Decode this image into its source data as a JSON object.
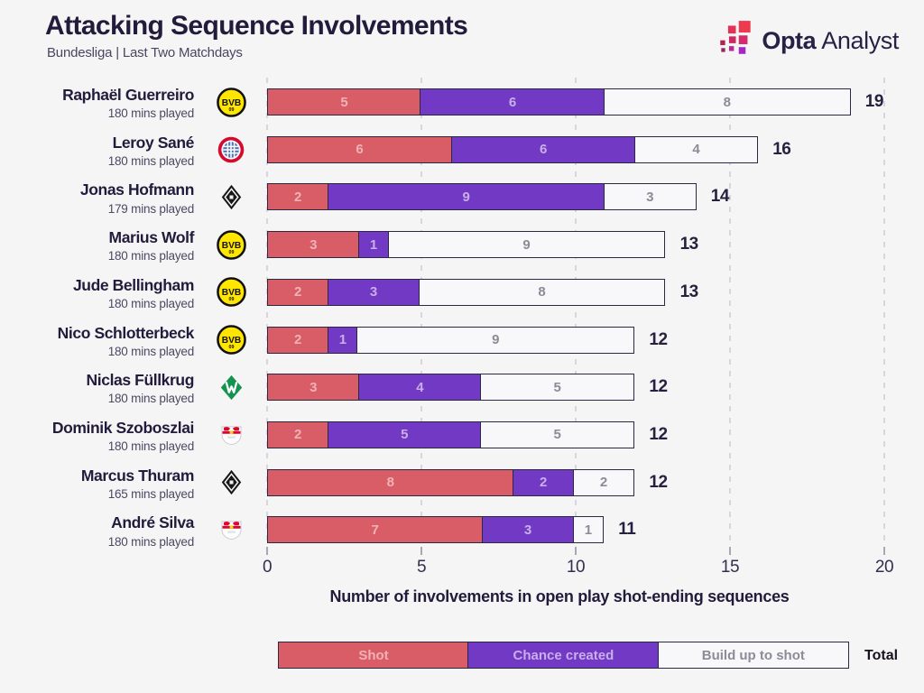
{
  "header": {
    "title": "Attacking Sequence Involvements",
    "subtitle": "Bundesliga | Last Two Matchdays",
    "brand": {
      "bold": "Opta",
      "regular": "Analyst"
    }
  },
  "chart_data": {
    "type": "bar",
    "stacked": true,
    "orientation": "horizontal",
    "title": "Attacking Sequence Involvements",
    "subtitle": "Bundesliga | Last Two Matchdays",
    "xlabel": "Number of involvements in open play shot-ending sequences",
    "x_ticks": [
      0,
      5,
      10,
      15,
      20
    ],
    "xlim": [
      0,
      20
    ],
    "grid": "dashed-vertical",
    "series_names": [
      "Shot",
      "Chance created",
      "Build up to shot"
    ],
    "players": [
      {
        "name": "Raphaël Guerreiro",
        "mins": "180 mins played",
        "team": "dortmund",
        "values": [
          5,
          6,
          8
        ],
        "total": 19
      },
      {
        "name": "Leroy Sané",
        "mins": "180 mins played",
        "team": "bayern",
        "values": [
          6,
          6,
          4
        ],
        "total": 16
      },
      {
        "name": "Jonas Hofmann",
        "mins": "179 mins played",
        "team": "gladbach",
        "values": [
          2,
          9,
          3
        ],
        "total": 14
      },
      {
        "name": "Marius Wolf",
        "mins": "180 mins played",
        "team": "dortmund",
        "values": [
          3,
          1,
          9
        ],
        "total": 13
      },
      {
        "name": "Jude Bellingham",
        "mins": "180 mins played",
        "team": "dortmund",
        "values": [
          2,
          3,
          8
        ],
        "total": 13
      },
      {
        "name": "Nico Schlotterbeck",
        "mins": "180 mins played",
        "team": "dortmund",
        "values": [
          2,
          1,
          9
        ],
        "total": 12
      },
      {
        "name": "Niclas Füllkrug",
        "mins": "180 mins played",
        "team": "bremen",
        "values": [
          3,
          4,
          5
        ],
        "total": 12
      },
      {
        "name": "Dominik Szoboszlai",
        "mins": "180 mins played",
        "team": "leipzig",
        "values": [
          2,
          5,
          5
        ],
        "total": 12
      },
      {
        "name": "Marcus Thuram",
        "mins": "165 mins played",
        "team": "gladbach",
        "values": [
          8,
          2,
          2
        ],
        "total": 12
      },
      {
        "name": "André Silva",
        "mins": "180 mins played",
        "team": "leipzig",
        "values": [
          7,
          3,
          1
        ],
        "total": 11
      }
    ]
  },
  "legend": {
    "items": [
      {
        "label": "Shot",
        "color": "#d95d67",
        "text_color": "#efb2b7"
      },
      {
        "label": "Chance created",
        "color": "#7239c4",
        "text_color": "#c9afe9"
      },
      {
        "label": "Build up to shot",
        "color": "#f8f7f9",
        "text_color": "#8e8b97"
      }
    ],
    "total_label": "Total"
  },
  "colors": {
    "background": "#f6f5f6",
    "dark_text": "#221b3b",
    "secondary_text": "#4a4560",
    "bar_border": "#2c2742",
    "gridline": "#d8d6dc",
    "shot": "#d95d67",
    "chance_created": "#7239c4",
    "build_up": "#f8f7f9"
  },
  "icon_map": {
    "opta-squares-icon": "staircase of red-to-purple squares",
    "club-badge-dortmund-icon": "yellow circle BVB 09",
    "club-badge-bayern-icon": "red ring, blue-white checkered core",
    "club-badge-gladbach-icon": "black diamond with white inner diamond",
    "club-badge-bremen-icon": "green diamond with white W",
    "club-badge-leipzig-icon": "white shield with red bulls and yellow ball"
  }
}
